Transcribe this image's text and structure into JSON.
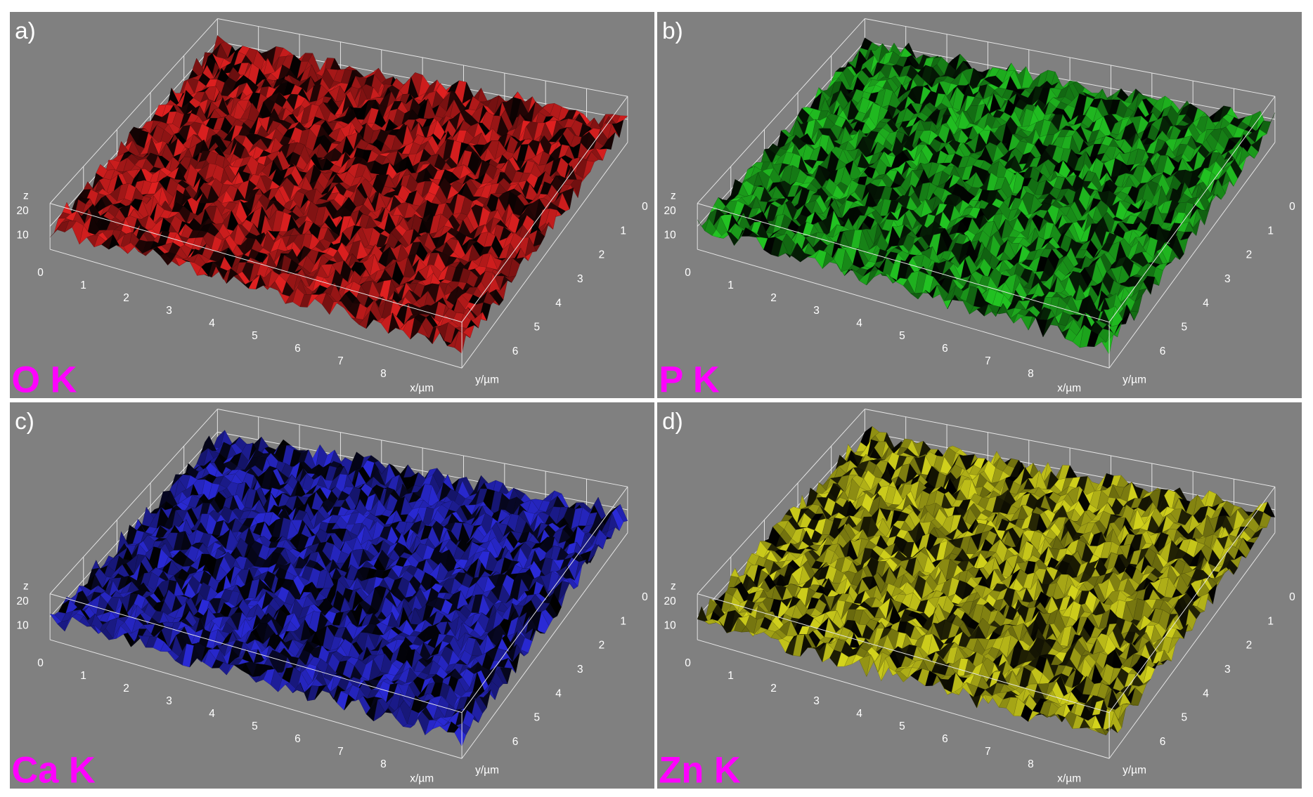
{
  "panels": [
    {
      "label": "a)",
      "element": "O K",
      "color": "#e02020",
      "x_label": "x/µm",
      "y_label": "y/µm",
      "z_label": "z",
      "z_ticks": [
        20,
        10
      ],
      "x_ticks": [
        0,
        1,
        2,
        3,
        4,
        5,
        6,
        7,
        8
      ],
      "y_ticks": [
        0,
        1,
        2,
        3,
        4,
        5,
        6
      ]
    },
    {
      "label": "b)",
      "element": "P K",
      "color": "#22c422",
      "x_label": "x/µm",
      "y_label": "y/µm",
      "z_label": "z",
      "z_ticks": [
        20,
        10
      ],
      "x_ticks": [
        0,
        1,
        2,
        3,
        4,
        5,
        6,
        7,
        8
      ],
      "y_ticks": [
        0,
        1,
        2,
        3,
        4,
        5,
        6
      ]
    },
    {
      "label": "c)",
      "element": "Ca K",
      "color": "#2a2ad8",
      "x_label": "x/µm",
      "y_label": "y/µm",
      "z_label": "z",
      "z_ticks": [
        20,
        10
      ],
      "x_ticks": [
        0,
        1,
        2,
        3,
        4,
        5,
        6,
        7,
        8
      ],
      "y_ticks": [
        0,
        1,
        2,
        3,
        4,
        5,
        6
      ]
    },
    {
      "label": "d)",
      "element": "Zn K",
      "color": "#d4d41c",
      "x_label": "x/µm",
      "y_label": "y/µm",
      "z_label": "z",
      "z_ticks": [
        20,
        10
      ],
      "x_ticks": [
        0,
        1,
        2,
        3,
        4,
        5,
        6,
        7,
        8
      ],
      "y_ticks": [
        0,
        1,
        2,
        3,
        4,
        5,
        6
      ]
    }
  ]
}
